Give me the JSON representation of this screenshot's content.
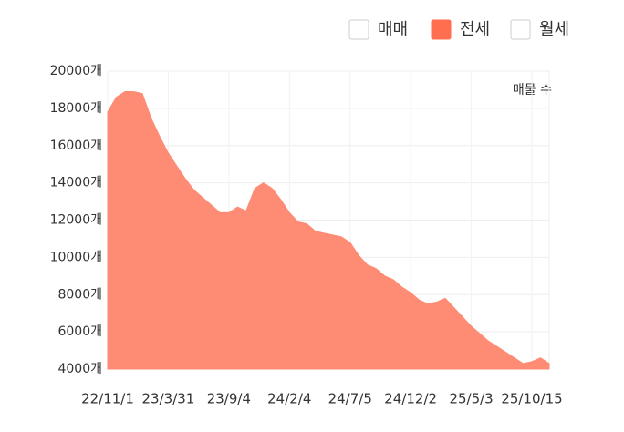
{
  "chart_data": {
    "type": "area",
    "annotation": "매물 수",
    "legend": [
      {
        "label": "매매",
        "selected": false
      },
      {
        "label": "전세",
        "selected": true,
        "color": "#ff6e4f"
      },
      {
        "label": "월세",
        "selected": false
      }
    ],
    "categories": [
      "22/11/1",
      null,
      null,
      null,
      null,
      null,
      null,
      "23/3/31",
      null,
      null,
      null,
      null,
      null,
      null,
      "23/9/4",
      null,
      null,
      null,
      null,
      null,
      null,
      "24/2/4",
      null,
      null,
      null,
      null,
      null,
      null,
      "24/7/5",
      null,
      null,
      null,
      null,
      null,
      null,
      "24/12/2",
      null,
      null,
      null,
      null,
      null,
      null,
      "25/5/3",
      null,
      null,
      null,
      null,
      null,
      null,
      "25/10/15",
      null,
      null
    ],
    "series": [
      {
        "name": "전세",
        "color": "#fe8c74",
        "values": [
          17800,
          18600,
          18900,
          18900,
          18800,
          17500,
          16500,
          15600,
          14900,
          14200,
          13600,
          13200,
          12800,
          12400,
          12400,
          12700,
          12500,
          13700,
          14000,
          13700,
          13100,
          12400,
          11900,
          11800,
          11400,
          11300,
          11200,
          11100,
          10800,
          10100,
          9600,
          9400,
          9000,
          8800,
          8400,
          8100,
          7700,
          7500,
          7600,
          7800,
          7300,
          6800,
          6300,
          5900,
          5500,
          5200,
          4900,
          4600,
          4300,
          4400,
          4600,
          4300
        ]
      }
    ],
    "ylim": [
      4000,
      20000
    ],
    "yticks": [
      {
        "value": 4000,
        "label": "4000개"
      },
      {
        "value": 6000,
        "label": "6000개"
      },
      {
        "value": 8000,
        "label": "8000개"
      },
      {
        "value": 10000,
        "label": "10000개"
      },
      {
        "value": 12000,
        "label": "12000개"
      },
      {
        "value": 14000,
        "label": "14000개"
      },
      {
        "value": 16000,
        "label": "16000개"
      },
      {
        "value": 18000,
        "label": "18000개"
      },
      {
        "value": 20000,
        "label": "20000개"
      }
    ],
    "grid": true
  }
}
